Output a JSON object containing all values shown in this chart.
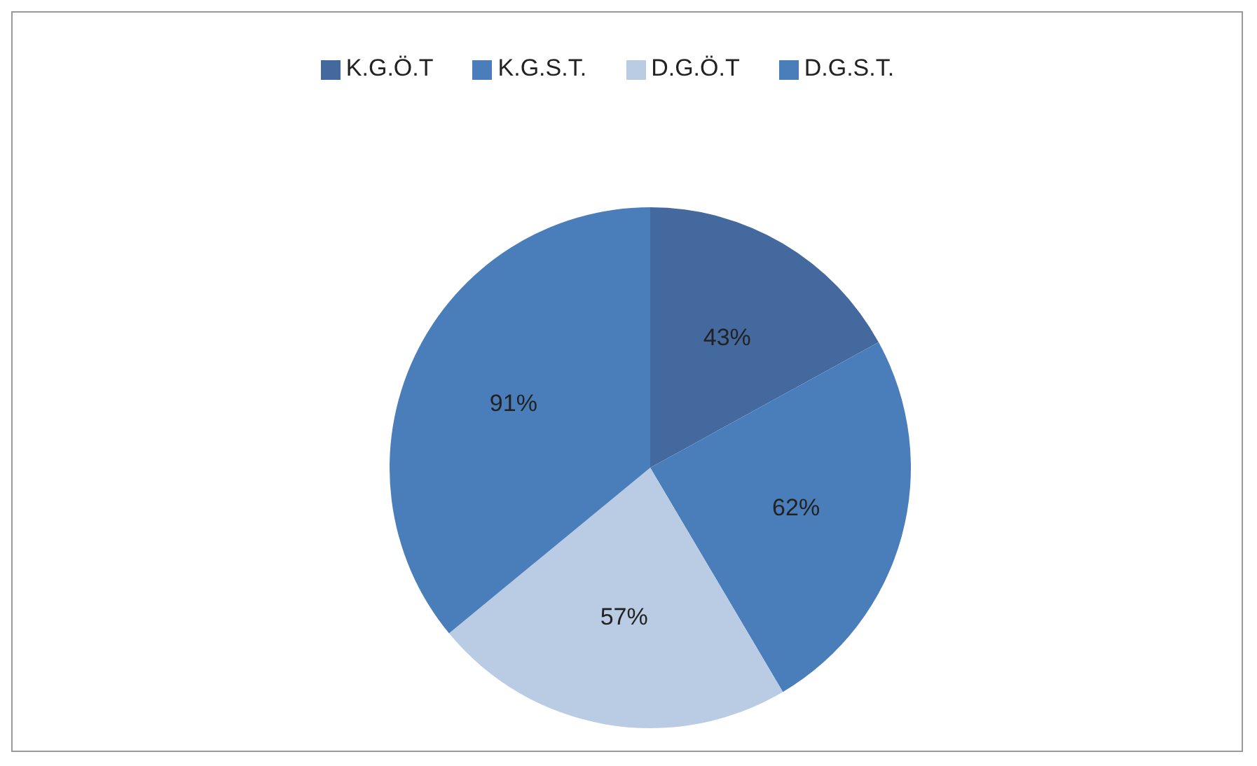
{
  "chart_data": {
    "type": "pie",
    "categories": [
      "K.G.Ö.T",
      "K.G.S.T.",
      "D.G.Ö.T",
      "D.G.S.T."
    ],
    "values": [
      43,
      62,
      57,
      91
    ],
    "colors": [
      "#44699e",
      "#4a7ebb",
      "#b9cce4",
      "#4a7ebb"
    ],
    "value_labels": [
      "43%",
      "62%",
      "57%",
      "91%"
    ],
    "legend": "top"
  }
}
